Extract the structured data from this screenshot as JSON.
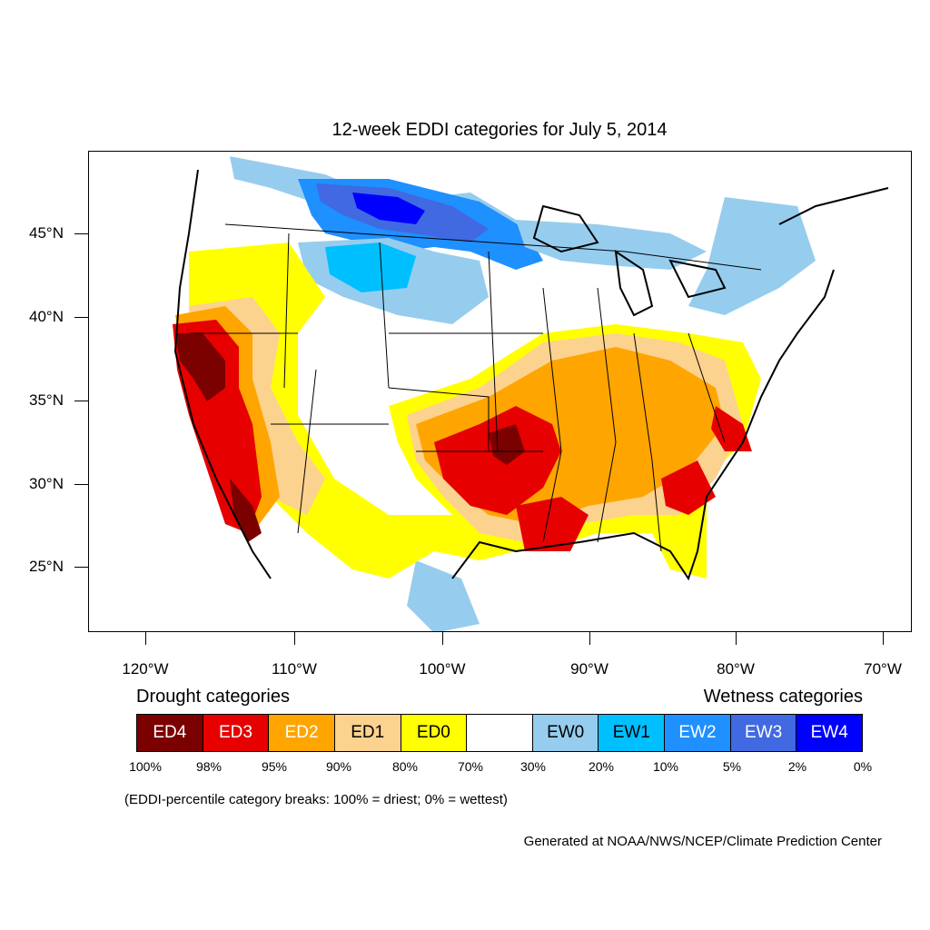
{
  "title": "12-week EDDI categories for July 5, 2014",
  "map": {
    "lat_labels": [
      "45°N",
      "40°N",
      "35°N",
      "30°N",
      "25°N"
    ],
    "lon_labels": [
      "120°W",
      "110°W",
      "100°W",
      "90°W",
      "80°W",
      "70°W"
    ]
  },
  "legend": {
    "drought_heading": "Drought categories",
    "wetness_heading": "Wetness categories",
    "categories": [
      {
        "label": "ED4",
        "color": "#7b0000",
        "text_color": "#ffffff"
      },
      {
        "label": "ED3",
        "color": "#e60000",
        "text_color": "#ffffff"
      },
      {
        "label": "ED2",
        "color": "#ffa500",
        "text_color": "#ffffff"
      },
      {
        "label": "ED1",
        "color": "#fcd28f",
        "text_color": "#000000"
      },
      {
        "label": "ED0",
        "color": "#ffff00",
        "text_color": "#000000"
      },
      {
        "label": "",
        "color": "#ffffff",
        "text_color": "#000000"
      },
      {
        "label": "EW0",
        "color": "#96cdee",
        "text_color": "#000000"
      },
      {
        "label": "EW1",
        "color": "#00bfff",
        "text_color": "#000000"
      },
      {
        "label": "EW2",
        "color": "#1e90ff",
        "text_color": "#ffffff"
      },
      {
        "label": "EW3",
        "color": "#4169e1",
        "text_color": "#ffffff"
      },
      {
        "label": "EW4",
        "color": "#0000ff",
        "text_color": "#ffffff"
      }
    ],
    "percent_breaks": [
      "100%",
      "98%",
      "95%",
      "90%",
      "80%",
      "70%",
      "30%",
      "20%",
      "10%",
      "5%",
      "2%",
      "0%"
    ]
  },
  "note": "(EDDI-percentile category breaks: 100% = driest; 0% = wettest)",
  "credit": "Generated at NOAA/NWS/NCEP/Climate Prediction Center"
}
